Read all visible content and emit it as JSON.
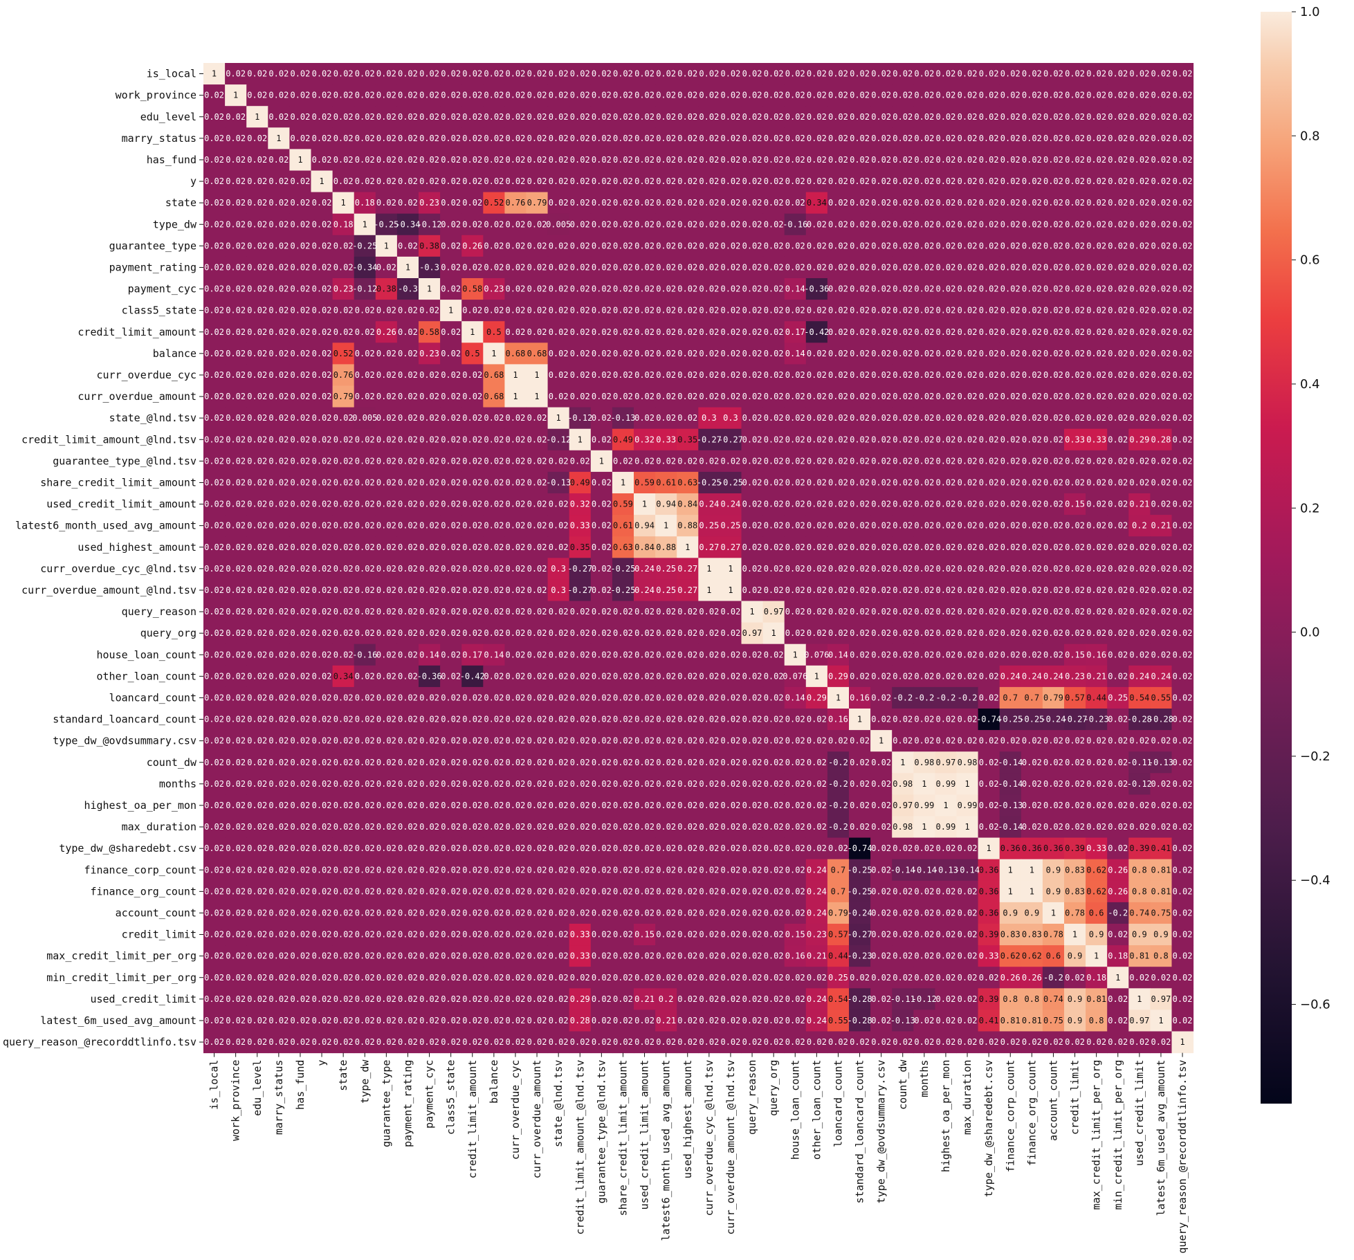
{
  "chart_data": {
    "type": "heatmap",
    "labels": [
      "is_local",
      "work_province",
      "edu_level",
      "marry_status",
      "has_fund",
      "y",
      "state",
      "type_dw",
      "guarantee_type",
      "payment_rating",
      "payment_cyc",
      "class5_state",
      "credit_limit_amount",
      "balance",
      "curr_overdue_cyc",
      "curr_overdue_amount",
      "state_@lnd.tsv",
      "credit_limit_amount_@lnd.tsv",
      "guarantee_type_@lnd.tsv",
      "share_credit_limit_amount",
      "used_credit_limit_amount",
      "latest6_month_used_avg_amount",
      "used_highest_amount",
      "curr_overdue_cyc_@lnd.tsv",
      "curr_overdue_amount_@lnd.tsv",
      "query_reason",
      "query_org",
      "house_loan_count",
      "other_loan_count",
      "loancard_count",
      "standard_loancard_count",
      "type_dw_@ovdsummary.csv",
      "count_dw",
      "months",
      "highest_oa_per_mon",
      "max_duration",
      "type_dw_@sharedebt.csv",
      "finance_corp_count",
      "finance_org_count",
      "account_count",
      "credit_limit",
      "max_credit_limit_per_org",
      "min_credit_limit_per_org",
      "used_credit_limit",
      "latest_6m_used_avg_amount",
      "query_reason_@recorddtlinfo.tsv"
    ],
    "strong_pairs": [
      [
        "state",
        "balance",
        0.52
      ],
      [
        "state",
        "curr_overdue_cyc",
        0.76
      ],
      [
        "state",
        "curr_overdue_amount",
        0.79
      ],
      [
        "payment_cyc",
        "guarantee_type",
        0.38
      ],
      [
        "payment_cyc",
        "payment_rating",
        -0.3
      ],
      [
        "payment_cyc",
        "credit_limit_amount",
        0.58
      ],
      [
        "payment_cyc",
        "type_dw",
        -0.12
      ],
      [
        "type_dw",
        "guarantee_type",
        -0.25
      ],
      [
        "type_dw",
        "payment_rating",
        -0.34
      ],
      [
        "guarantee_type",
        "credit_limit_amount",
        0.26
      ],
      [
        "state",
        "type_dw",
        0.18
      ],
      [
        "state",
        "payment_cyc",
        0.23
      ],
      [
        "credit_limit_amount",
        "balance",
        0.5
      ],
      [
        "balance",
        "payment_cyc",
        0.23
      ],
      [
        "balance",
        "curr_overdue_cyc",
        0.68
      ],
      [
        "balance",
        "curr_overdue_amount",
        0.68
      ],
      [
        "curr_overdue_cyc",
        "curr_overdue_amount",
        1.0
      ],
      [
        "state",
        "other_loan_count",
        0.34
      ],
      [
        "type_dw",
        "house_loan_count",
        -0.16
      ],
      [
        "credit_limit_amount",
        "other_loan_count",
        -0.42
      ],
      [
        "credit_limit_amount_@lnd.tsv",
        "share_credit_limit_amount",
        0.49
      ],
      [
        "credit_limit_amount_@lnd.tsv",
        "used_credit_limit_amount",
        0.32
      ],
      [
        "credit_limit_amount_@lnd.tsv",
        "latest6_month_used_avg_amount",
        0.33
      ],
      [
        "credit_limit_amount_@lnd.tsv",
        "used_highest_amount",
        0.35
      ],
      [
        "credit_limit_amount_@lnd.tsv",
        "curr_overdue_cyc_@lnd.tsv",
        -0.27
      ],
      [
        "credit_limit_amount_@lnd.tsv",
        "curr_overdue_amount_@lnd.tsv",
        -0.27
      ],
      [
        "state_@lnd.tsv",
        "curr_overdue_cyc_@lnd.tsv",
        0.3
      ],
      [
        "state_@lnd.tsv",
        "curr_overdue_amount_@lnd.tsv",
        0.3
      ],
      [
        "share_credit_limit_amount",
        "used_credit_limit_amount",
        0.59
      ],
      [
        "share_credit_limit_amount",
        "latest6_month_used_avg_amount",
        0.61
      ],
      [
        "share_credit_limit_amount",
        "used_highest_amount",
        0.63
      ],
      [
        "share_credit_limit_amount",
        "curr_overdue_cyc_@lnd.tsv",
        -0.25
      ],
      [
        "share_credit_limit_amount",
        "curr_overdue_amount_@lnd.tsv",
        -0.25
      ],
      [
        "used_credit_limit_amount",
        "latest6_month_used_avg_amount",
        0.94
      ],
      [
        "used_credit_limit_amount",
        "used_highest_amount",
        0.84
      ],
      [
        "latest6_month_used_avg_amount",
        "used_highest_amount",
        0.88
      ],
      [
        "used_credit_limit_amount",
        "curr_overdue_cyc_@lnd.tsv",
        0.24
      ],
      [
        "latest6_month_used_avg_amount",
        "curr_overdue_cyc_@lnd.tsv",
        0.25
      ],
      [
        "used_highest_amount",
        "curr_overdue_cyc_@lnd.tsv",
        0.27
      ],
      [
        "used_credit_limit_amount",
        "curr_overdue_amount_@lnd.tsv",
        0.24
      ],
      [
        "latest6_month_used_avg_amount",
        "curr_overdue_amount_@lnd.tsv",
        0.25
      ],
      [
        "used_highest_amount",
        "curr_overdue_amount_@lnd.tsv",
        0.27
      ],
      [
        "curr_overdue_cyc_@lnd.tsv",
        "curr_overdue_amount_@lnd.tsv",
        1.0
      ],
      [
        "query_reason",
        "query_org",
        0.97
      ],
      [
        "other_loan_count",
        "loancard_count",
        0.29
      ],
      [
        "loancard_count",
        "standard_loancard_count",
        0.16
      ],
      [
        "standard_loancard_count",
        "type_dw_@sharedebt.csv",
        -0.74
      ],
      [
        "count_dw",
        "months",
        0.98
      ],
      [
        "count_dw",
        "highest_oa_per_mon",
        0.97
      ],
      [
        "count_dw",
        "max_duration",
        0.98
      ],
      [
        "months",
        "highest_oa_per_mon",
        0.99
      ],
      [
        "months",
        "max_duration",
        1.0
      ],
      [
        "highest_oa_per_mon",
        "max_duration",
        0.99
      ],
      [
        "loancard_count",
        "finance_corp_count",
        0.7
      ],
      [
        "loancard_count",
        "finance_org_count",
        0.7
      ],
      [
        "loancard_count",
        "account_count",
        0.79
      ],
      [
        "loancard_count",
        "credit_limit",
        0.57
      ],
      [
        "loancard_count",
        "max_credit_limit_per_org",
        0.44
      ],
      [
        "loancard_count",
        "min_credit_limit_per_org",
        0.25
      ],
      [
        "loancard_count",
        "used_credit_limit",
        0.54
      ],
      [
        "loancard_count",
        "latest_6m_used_avg_amount",
        0.55
      ],
      [
        "other_loan_count",
        "finance_corp_count",
        0.24
      ],
      [
        "other_loan_count",
        "finance_org_count",
        0.24
      ],
      [
        "other_loan_count",
        "account_count",
        0.24
      ],
      [
        "other_loan_count",
        "credit_limit",
        0.23
      ],
      [
        "other_loan_count",
        "max_credit_limit_per_org",
        0.21
      ],
      [
        "other_loan_count",
        "used_credit_limit",
        0.24
      ],
      [
        "other_loan_count",
        "latest_6m_used_avg_amount",
        0.24
      ],
      [
        "standard_loancard_count",
        "finance_corp_count",
        -0.25
      ],
      [
        "standard_loancard_count",
        "finance_org_count",
        -0.25
      ],
      [
        "standard_loancard_count",
        "account_count",
        -0.24
      ],
      [
        "standard_loancard_count",
        "credit_limit",
        -0.27
      ],
      [
        "standard_loancard_count",
        "max_credit_limit_per_org",
        -0.23
      ],
      [
        "standard_loancard_count",
        "used_credit_limit",
        -0.28
      ],
      [
        "standard_loancard_count",
        "latest_6m_used_avg_amount",
        -0.28
      ],
      [
        "type_dw_@sharedebt.csv",
        "finance_corp_count",
        0.36
      ],
      [
        "type_dw_@sharedebt.csv",
        "finance_org_count",
        0.36
      ],
      [
        "type_dw_@sharedebt.csv",
        "account_count",
        0.36
      ],
      [
        "type_dw_@sharedebt.csv",
        "credit_limit",
        0.39
      ],
      [
        "type_dw_@sharedebt.csv",
        "max_credit_limit_per_org",
        0.33
      ],
      [
        "type_dw_@sharedebt.csv",
        "used_credit_limit",
        0.39
      ],
      [
        "type_dw_@sharedebt.csv",
        "latest_6m_used_avg_amount",
        0.41
      ],
      [
        "finance_corp_count",
        "finance_org_count",
        1.0
      ],
      [
        "finance_corp_count",
        "account_count",
        0.9
      ],
      [
        "finance_org_count",
        "account_count",
        0.9
      ],
      [
        "finance_corp_count",
        "credit_limit",
        0.83
      ],
      [
        "finance_org_count",
        "credit_limit",
        0.83
      ],
      [
        "account_count",
        "credit_limit",
        0.78
      ],
      [
        "finance_corp_count",
        "max_credit_limit_per_org",
        0.62
      ],
      [
        "finance_org_count",
        "max_credit_limit_per_org",
        0.62
      ],
      [
        "account_count",
        "max_credit_limit_per_org",
        0.6
      ],
      [
        "credit_limit",
        "max_credit_limit_per_org",
        0.9
      ],
      [
        "finance_corp_count",
        "min_credit_limit_per_org",
        0.26
      ],
      [
        "finance_org_count",
        "min_credit_limit_per_org",
        0.26
      ],
      [
        "account_count",
        "min_credit_limit_per_org",
        -0.2
      ],
      [
        "max_credit_limit_per_org",
        "min_credit_limit_per_org",
        0.18
      ],
      [
        "finance_corp_count",
        "used_credit_limit",
        0.8
      ],
      [
        "finance_org_count",
        "used_credit_limit",
        0.8
      ],
      [
        "account_count",
        "used_credit_limit",
        0.74
      ],
      [
        "credit_limit",
        "used_credit_limit",
        0.9
      ],
      [
        "max_credit_limit_per_org",
        "used_credit_limit",
        0.81
      ],
      [
        "finance_corp_count",
        "latest_6m_used_avg_amount",
        0.81
      ],
      [
        "finance_org_count",
        "latest_6m_used_avg_amount",
        0.81
      ],
      [
        "account_count",
        "latest_6m_used_avg_amount",
        0.75
      ],
      [
        "credit_limit",
        "latest_6m_used_avg_amount",
        0.9
      ],
      [
        "max_credit_limit_per_org",
        "latest_6m_used_avg_amount",
        0.8
      ],
      [
        "used_credit_limit",
        "latest_6m_used_avg_amount",
        0.97
      ],
      [
        "count_dw",
        "finance_corp_count",
        -0.14
      ],
      [
        "months",
        "finance_corp_count",
        -0.14
      ],
      [
        "highest_oa_per_mon",
        "finance_corp_count",
        -0.13
      ],
      [
        "max_duration",
        "finance_corp_count",
        -0.14
      ],
      [
        "count_dw",
        "used_credit_limit",
        -0.11
      ],
      [
        "months",
        "used_credit_limit",
        -0.12
      ],
      [
        "count_dw",
        "latest_6m_used_avg_amount",
        -0.13
      ],
      [
        "loancard_count",
        "count_dw",
        -0.2
      ],
      [
        "loancard_count",
        "months",
        -0.2
      ],
      [
        "loancard_count",
        "highest_oa_per_mon",
        -0.2
      ],
      [
        "loancard_count",
        "max_duration",
        -0.2
      ],
      [
        "credit_limit_amount_@lnd.tsv",
        "credit_limit",
        0.33
      ],
      [
        "credit_limit_amount_@lnd.tsv",
        "max_credit_limit_per_org",
        0.33
      ],
      [
        "credit_limit_amount_@lnd.tsv",
        "used_credit_limit",
        0.29
      ],
      [
        "credit_limit_amount_@lnd.tsv",
        "latest_6m_used_avg_amount",
        0.28
      ],
      [
        "used_credit_limit_amount",
        "credit_limit",
        0.15
      ],
      [
        "used_credit_limit_amount",
        "used_credit_limit",
        0.21
      ],
      [
        "latest6_month_used_avg_amount",
        "used_credit_limit",
        0.2
      ],
      [
        "latest6_month_used_avg_amount",
        "latest_6m_used_avg_amount",
        0.21
      ],
      [
        "house_loan_count",
        "other_loan_count",
        0.076
      ],
      [
        "house_loan_count",
        "loancard_count",
        0.14
      ],
      [
        "house_loan_count",
        "credit_limit",
        0.15
      ],
      [
        "house_loan_count",
        "max_credit_limit_per_org",
        0.16
      ],
      [
        "state_@lnd.tsv",
        "credit_limit_amount_@lnd.tsv",
        -0.12
      ],
      [
        "share_credit_limit_amount",
        "state_@lnd.tsv",
        -0.13
      ],
      [
        "type_dw",
        "state_@lnd.tsv",
        0.005
      ],
      [
        "payment_cyc",
        "house_loan_count",
        0.14
      ],
      [
        "payment_cyc",
        "other_loan_count",
        -0.36
      ],
      [
        "balance",
        "house_loan_count",
        0.14
      ],
      [
        "credit_limit_amount",
        "house_loan_count",
        0.17
      ]
    ],
    "cbar": {
      "min": -0.76,
      "max": 1.0,
      "ticks": [
        {
          "value": 1.0,
          "label": "1.0"
        },
        {
          "value": 0.8,
          "label": "0.8"
        },
        {
          "value": 0.6,
          "label": "0.6"
        },
        {
          "value": 0.4,
          "label": "0.4"
        },
        {
          "value": 0.2,
          "label": "0.2"
        },
        {
          "value": 0.0,
          "label": "0.0"
        },
        {
          "value": -0.2,
          "label": "−0.2"
        },
        {
          "value": -0.4,
          "label": "−0.4"
        },
        {
          "value": -0.6,
          "label": "−0.6"
        }
      ]
    },
    "colors": {
      "neutral": "#6e1457",
      "cmap_stops": [
        [
          0.0,
          "#03051a"
        ],
        [
          0.12,
          "#221331"
        ],
        [
          0.25,
          "#4c1d4b"
        ],
        [
          0.38,
          "#751f58"
        ],
        [
          0.5,
          "#a11a5b"
        ],
        [
          0.62,
          "#cb1b4f"
        ],
        [
          0.72,
          "#ec3f3f"
        ],
        [
          0.8,
          "#f3714d"
        ],
        [
          0.88,
          "#f6a47a"
        ],
        [
          0.95,
          "#f7cbac"
        ],
        [
          1.0,
          "#faebdd"
        ]
      ]
    }
  }
}
